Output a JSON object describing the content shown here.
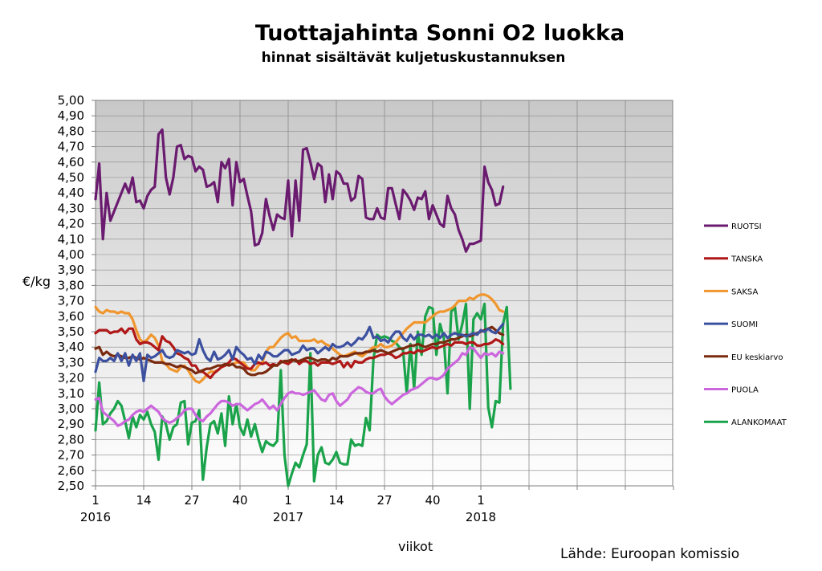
{
  "chart_data": {
    "type": "line",
    "title": "Tuottajahinta Sonni O2 luokka",
    "subtitle": "hinnat sisältävät kuljetuskustannuksen",
    "ylabel": "€/kg",
    "xlabel": "viikot",
    "source": "Lähde: Euroopan komissio",
    "ylim": [
      2.5,
      5.0
    ],
    "yticks": [
      "5,00",
      "4,90",
      "4,80",
      "4,70",
      "4,60",
      "4,50",
      "4,40",
      "4,30",
      "4,20",
      "4,10",
      "4,00",
      "3,90",
      "3,80",
      "3,70",
      "3,60",
      "3,50",
      "3,40",
      "3,30",
      "3,20",
      "3,10",
      "3,00",
      "2,90",
      "2,80",
      "2,70",
      "2,60",
      "2,50"
    ],
    "xtick_labels": [
      {
        "week": "1",
        "year": "2016"
      },
      {
        "week": "14",
        "year": ""
      },
      {
        "week": "27",
        "year": ""
      },
      {
        "week": "40",
        "year": ""
      },
      {
        "week": "1",
        "year": "2017"
      },
      {
        "week": "14",
        "year": ""
      },
      {
        "week": "27",
        "year": ""
      },
      {
        "week": "40",
        "year": ""
      },
      {
        "week": "1",
        "year": "2018"
      }
    ],
    "grid": true,
    "legend_position": "right",
    "series": [
      {
        "name": "RUOTSI",
        "color": "#6a1b6f",
        "values": [
          4.36,
          4.59,
          4.1,
          4.4,
          4.22,
          4.28,
          4.34,
          4.4,
          4.46,
          4.4,
          4.5,
          4.34,
          4.35,
          4.3,
          4.38,
          4.42,
          4.44,
          4.78,
          4.81,
          4.5,
          4.39,
          4.5,
          4.7,
          4.71,
          4.62,
          4.64,
          4.63,
          4.54,
          4.57,
          4.55,
          4.44,
          4.45,
          4.47,
          4.34,
          4.6,
          4.56,
          4.62,
          4.32,
          4.6,
          4.47,
          4.49,
          4.38,
          4.28,
          4.06,
          4.07,
          4.14,
          4.36,
          4.25,
          4.16,
          4.26,
          4.24,
          4.23,
          4.48,
          4.12,
          4.48,
          4.22,
          4.68,
          4.69,
          4.6,
          4.49,
          4.59,
          4.57,
          4.34,
          4.52,
          4.36,
          4.54,
          4.52,
          4.46,
          4.46,
          4.35,
          4.37,
          4.51,
          4.49,
          4.24,
          4.23,
          4.23,
          4.3,
          4.24,
          4.23,
          4.43,
          4.43,
          4.33,
          4.23,
          4.42,
          4.39,
          4.35,
          4.29,
          4.37,
          4.36,
          4.41,
          4.23,
          4.32,
          4.26,
          4.2,
          4.18,
          4.38,
          4.3,
          4.26,
          4.16,
          4.1,
          4.02,
          4.07,
          4.07,
          4.08,
          4.09,
          4.57,
          4.47,
          4.42,
          4.32,
          4.33,
          4.44
        ]
      },
      {
        "name": "TANSKA",
        "color": "#b01818",
        "values": [
          3.49,
          3.51,
          3.51,
          3.51,
          3.49,
          3.5,
          3.5,
          3.52,
          3.49,
          3.52,
          3.52,
          3.45,
          3.42,
          3.43,
          3.43,
          3.42,
          3.4,
          3.38,
          3.47,
          3.44,
          3.43,
          3.4,
          3.36,
          3.35,
          3.33,
          3.32,
          3.28,
          3.28,
          3.24,
          3.24,
          3.22,
          3.2,
          3.23,
          3.25,
          3.27,
          3.28,
          3.3,
          3.33,
          3.32,
          3.3,
          3.28,
          3.26,
          3.26,
          3.29,
          3.3,
          3.29,
          3.3,
          3.28,
          3.29,
          3.28,
          3.31,
          3.3,
          3.29,
          3.31,
          3.32,
          3.29,
          3.31,
          3.31,
          3.29,
          3.3,
          3.28,
          3.3,
          3.3,
          3.3,
          3.29,
          3.3,
          3.31,
          3.27,
          3.3,
          3.27,
          3.31,
          3.3,
          3.3,
          3.32,
          3.33,
          3.33,
          3.34,
          3.35,
          3.35,
          3.36,
          3.35,
          3.33,
          3.34,
          3.36,
          3.36,
          3.37,
          3.36,
          3.38,
          3.37,
          3.38,
          3.39,
          3.4,
          3.39,
          3.4,
          3.41,
          3.42,
          3.41,
          3.43,
          3.43,
          3.43,
          3.42,
          3.43,
          3.43,
          3.41,
          3.41,
          3.42,
          3.42,
          3.43,
          3.45,
          3.44,
          3.42
        ]
      },
      {
        "name": "SAKSA",
        "color": "#f0962e",
        "values": [
          3.66,
          3.63,
          3.62,
          3.64,
          3.63,
          3.63,
          3.62,
          3.63,
          3.62,
          3.62,
          3.58,
          3.51,
          3.45,
          3.43,
          3.45,
          3.48,
          3.46,
          3.41,
          3.31,
          3.29,
          3.26,
          3.25,
          3.24,
          3.27,
          3.28,
          3.25,
          3.21,
          3.18,
          3.17,
          3.19,
          3.22,
          3.24,
          3.24,
          3.25,
          3.27,
          3.28,
          3.29,
          3.29,
          3.3,
          3.3,
          3.3,
          3.27,
          3.25,
          3.25,
          3.28,
          3.3,
          3.37,
          3.4,
          3.4,
          3.43,
          3.46,
          3.48,
          3.49,
          3.46,
          3.47,
          3.44,
          3.44,
          3.44,
          3.44,
          3.45,
          3.43,
          3.44,
          3.42,
          3.41,
          3.39,
          3.37,
          3.35,
          3.34,
          3.35,
          3.36,
          3.37,
          3.35,
          3.34,
          3.36,
          3.38,
          3.4,
          3.4,
          3.42,
          3.4,
          3.4,
          3.41,
          3.43,
          3.46,
          3.49,
          3.52,
          3.54,
          3.56,
          3.56,
          3.56,
          3.56,
          3.58,
          3.6,
          3.62,
          3.63,
          3.63,
          3.64,
          3.65,
          3.67,
          3.7,
          3.7,
          3.7,
          3.72,
          3.71,
          3.73,
          3.74,
          3.74,
          3.73,
          3.71,
          3.68,
          3.64,
          3.63
        ]
      },
      {
        "name": "SUOMI",
        "color": "#3c50a0",
        "values": [
          3.24,
          3.33,
          3.31,
          3.31,
          3.33,
          3.31,
          3.36,
          3.31,
          3.36,
          3.28,
          3.35,
          3.31,
          3.36,
          3.18,
          3.35,
          3.33,
          3.34,
          3.36,
          3.38,
          3.34,
          3.33,
          3.34,
          3.38,
          3.37,
          3.36,
          3.37,
          3.35,
          3.36,
          3.45,
          3.38,
          3.33,
          3.31,
          3.37,
          3.32,
          3.33,
          3.35,
          3.38,
          3.32,
          3.4,
          3.37,
          3.35,
          3.32,
          3.33,
          3.29,
          3.35,
          3.32,
          3.37,
          3.36,
          3.34,
          3.34,
          3.36,
          3.38,
          3.38,
          3.35,
          3.36,
          3.37,
          3.41,
          3.38,
          3.39,
          3.39,
          3.36,
          3.38,
          3.4,
          3.38,
          3.42,
          3.4,
          3.4,
          3.41,
          3.43,
          3.41,
          3.43,
          3.46,
          3.45,
          3.48,
          3.53,
          3.46,
          3.47,
          3.44,
          3.45,
          3.43,
          3.47,
          3.5,
          3.5,
          3.46,
          3.44,
          3.48,
          3.45,
          3.48,
          3.48,
          3.47,
          3.48,
          3.46,
          3.48,
          3.46,
          3.49,
          3.46,
          3.48,
          3.49,
          3.48,
          3.48,
          3.47,
          3.48,
          3.49,
          3.48,
          3.51,
          3.5,
          3.52,
          3.5,
          3.49,
          3.52,
          3.55
        ]
      },
      {
        "name": "EU keskiarvo",
        "color": "#7a2a0e",
        "values": [
          3.39,
          3.4,
          3.35,
          3.37,
          3.35,
          3.34,
          3.35,
          3.34,
          3.33,
          3.33,
          3.34,
          3.33,
          3.32,
          3.33,
          3.32,
          3.31,
          3.3,
          3.3,
          3.3,
          3.29,
          3.29,
          3.28,
          3.27,
          3.28,
          3.27,
          3.26,
          3.25,
          3.23,
          3.24,
          3.25,
          3.26,
          3.26,
          3.27,
          3.28,
          3.28,
          3.29,
          3.28,
          3.29,
          3.27,
          3.27,
          3.26,
          3.23,
          3.22,
          3.22,
          3.23,
          3.23,
          3.24,
          3.26,
          3.28,
          3.28,
          3.3,
          3.31,
          3.31,
          3.32,
          3.31,
          3.31,
          3.32,
          3.33,
          3.33,
          3.32,
          3.31,
          3.32,
          3.32,
          3.31,
          3.33,
          3.32,
          3.34,
          3.34,
          3.34,
          3.35,
          3.36,
          3.36,
          3.36,
          3.37,
          3.37,
          3.38,
          3.37,
          3.38,
          3.37,
          3.36,
          3.37,
          3.38,
          3.39,
          3.39,
          3.4,
          3.41,
          3.41,
          3.42,
          3.41,
          3.4,
          3.41,
          3.42,
          3.42,
          3.43,
          3.43,
          3.44,
          3.45,
          3.45,
          3.46,
          3.47,
          3.48,
          3.47,
          3.48,
          3.49,
          3.5,
          3.51,
          3.52,
          3.53,
          3.51,
          3.49,
          3.48
        ]
      },
      {
        "name": "PUOLA",
        "color": "#cc66dd",
        "values": [
          3.06,
          3.07,
          2.98,
          2.96,
          2.94,
          2.92,
          2.89,
          2.9,
          2.92,
          2.93,
          2.96,
          2.98,
          2.99,
          2.98,
          3.0,
          3.02,
          3.0,
          2.98,
          2.94,
          2.92,
          2.91,
          2.92,
          2.94,
          2.96,
          2.99,
          3.0,
          3.0,
          2.96,
          2.93,
          2.92,
          2.95,
          2.97,
          3.0,
          3.03,
          3.05,
          3.05,
          3.04,
          3.02,
          3.03,
          3.03,
          3.01,
          2.99,
          3.01,
          3.03,
          3.04,
          3.06,
          3.03,
          3.0,
          3.02,
          2.99,
          3.03,
          3.07,
          3.1,
          3.11,
          3.1,
          3.1,
          3.09,
          3.1,
          3.11,
          3.12,
          3.09,
          3.06,
          3.05,
          3.09,
          3.1,
          3.05,
          3.02,
          3.04,
          3.06,
          3.1,
          3.12,
          3.14,
          3.13,
          3.11,
          3.1,
          3.1,
          3.12,
          3.13,
          3.08,
          3.05,
          3.03,
          3.05,
          3.07,
          3.09,
          3.1,
          3.12,
          3.13,
          3.14,
          3.16,
          3.18,
          3.2,
          3.2,
          3.19,
          3.2,
          3.22,
          3.26,
          3.28,
          3.3,
          3.32,
          3.36,
          3.35,
          3.4,
          3.39,
          3.36,
          3.33,
          3.36,
          3.35,
          3.36,
          3.34,
          3.37,
          3.36
        ]
      },
      {
        "name": "ALANKOMAAT",
        "color": "#1aa34a",
        "values": [
          2.86,
          3.17,
          2.9,
          2.92,
          2.97,
          3.0,
          3.05,
          3.02,
          2.92,
          2.81,
          2.95,
          2.88,
          2.96,
          2.93,
          2.98,
          2.9,
          2.85,
          2.67,
          2.95,
          2.9,
          2.8,
          2.88,
          2.9,
          3.04,
          3.05,
          2.77,
          2.91,
          2.92,
          2.99,
          2.54,
          2.75,
          2.9,
          2.92,
          2.84,
          2.97,
          2.76,
          3.08,
          2.9,
          3.03,
          2.88,
          2.83,
          2.93,
          2.82,
          2.9,
          2.8,
          2.72,
          2.79,
          2.77,
          2.76,
          2.79,
          3.25,
          2.7,
          2.5,
          2.58,
          2.65,
          2.62,
          2.7,
          2.77,
          3.36,
          2.53,
          2.7,
          2.75,
          2.65,
          2.64,
          2.67,
          2.72,
          2.65,
          2.64,
          2.64,
          2.8,
          2.76,
          2.77,
          2.76,
          2.94,
          2.86,
          3.32,
          3.48,
          3.46,
          3.47,
          3.46,
          3.44,
          3.43,
          3.4,
          3.38,
          3.1,
          3.42,
          3.13,
          3.5,
          3.35,
          3.6,
          3.66,
          3.65,
          3.35,
          3.55,
          3.46,
          3.1,
          3.63,
          3.66,
          3.45,
          3.55,
          3.68,
          3.0,
          3.58,
          3.62,
          3.58,
          3.68,
          3.01,
          2.88,
          3.05,
          3.04,
          3.55,
          3.66,
          3.13
        ]
      }
    ]
  }
}
